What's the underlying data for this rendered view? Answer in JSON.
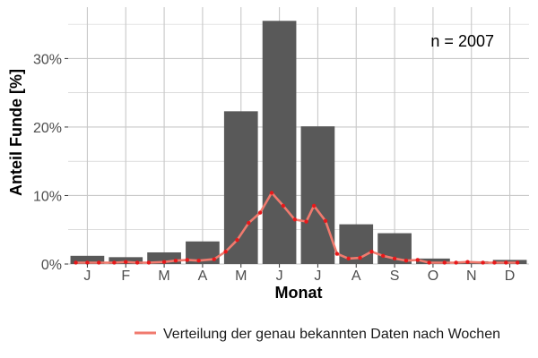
{
  "chart_data": {
    "type": "bar",
    "xlabel": "Monat",
    "ylabel": "Anteil Funde [%]",
    "annotation": "n = 2007",
    "categories": [
      "J",
      "F",
      "M",
      "A",
      "M",
      "J",
      "J",
      "A",
      "S",
      "O",
      "N",
      "D"
    ],
    "series": [
      {
        "type": "bar",
        "values": [
          1.2,
          1.0,
          1.7,
          3.3,
          22.3,
          35.5,
          20.1,
          5.8,
          4.5,
          0.8,
          0.4,
          0.6
        ]
      },
      {
        "type": "line",
        "name": "Verteilung der genau bekannten Daten nach Wochen",
        "x": [
          0.2,
          0.5,
          0.8,
          1.2,
          1.5,
          1.8,
          2.1,
          2.5,
          2.8,
          3.1,
          3.4,
          3.8,
          4.1,
          4.4,
          4.7,
          5.0,
          5.3,
          5.6,
          5.9,
          6.2,
          6.4,
          6.7,
          7.0,
          7.3,
          7.6,
          7.9,
          8.2,
          8.5,
          8.8,
          9.1,
          9.4,
          9.8,
          10.1,
          10.4,
          10.8,
          11.1,
          11.4,
          11.7
        ],
        "values": [
          0.2,
          0.2,
          0.2,
          0.2,
          0.3,
          0.2,
          0.2,
          0.3,
          0.5,
          0.6,
          0.5,
          0.7,
          1.8,
          3.5,
          6.0,
          7.5,
          10.4,
          8.5,
          6.5,
          6.2,
          8.5,
          6.3,
          1.5,
          0.8,
          0.9,
          1.8,
          1.2,
          0.8,
          0.5,
          0.6,
          0.2,
          0.2,
          0.2,
          0.3,
          0.2,
          0.2,
          0.2,
          0.2
        ]
      }
    ],
    "ylim": [
      0,
      37.5
    ],
    "yticks": [
      0,
      10,
      20,
      30
    ],
    "ytick_labels": [
      "0%",
      "10%",
      "20%",
      "30%"
    ],
    "grid": true,
    "legend_position": "bottom",
    "colors": {
      "bar": "#595959",
      "line": "#f07a6e",
      "points": "#e8191b",
      "grid": "#c8c8c8"
    }
  }
}
